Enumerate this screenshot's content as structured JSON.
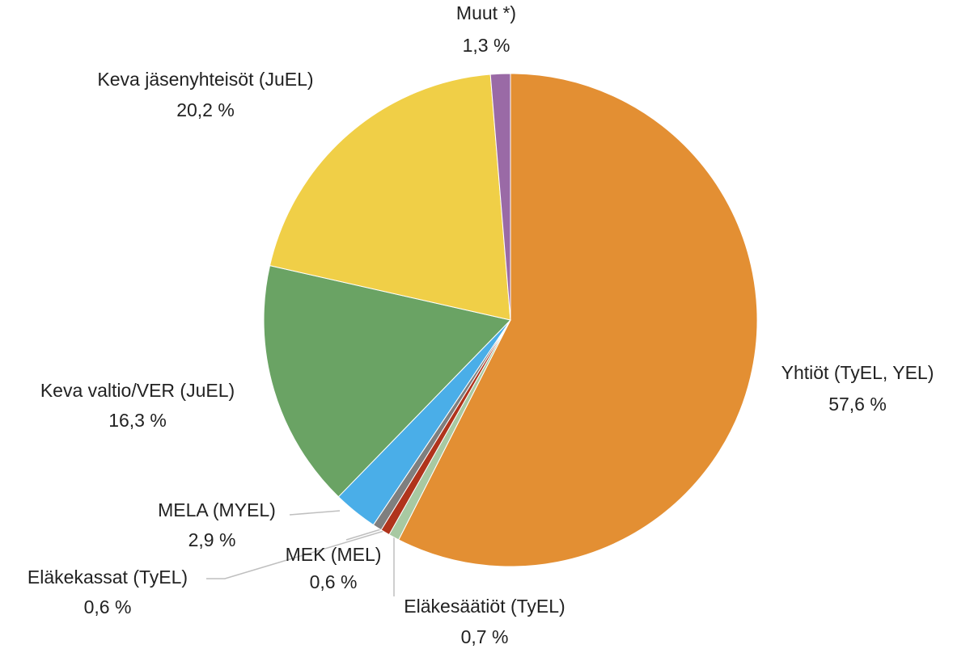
{
  "chart_data": {
    "type": "pie",
    "categories": [
      "Yhtiöt (TyEL, YEL)",
      "Eläkesäätiöt (TyEL)",
      "MEK (MEL)",
      "Eläkekassat (TyEL)",
      "MELA (MYEL)",
      "Keva valtio/VER (JuEL)",
      "Keva jäsenyhteisöt (JuEL)",
      "Muut *)"
    ],
    "values": [
      57.6,
      0.7,
      0.6,
      0.6,
      2.9,
      16.3,
      20.2,
      1.3
    ],
    "value_labels": [
      "57,6 %",
      "0,7 %",
      "0,6 %",
      "0,6 %",
      "2,9 %",
      "16,3 %",
      "20,2 %",
      "1,3 %"
    ],
    "colors": [
      "#e38f33",
      "#a8c9a2",
      "#b0341c",
      "#7f7f7f",
      "#4aaee8",
      "#6aa364",
      "#f0cf47",
      "#9a6aa6"
    ]
  }
}
